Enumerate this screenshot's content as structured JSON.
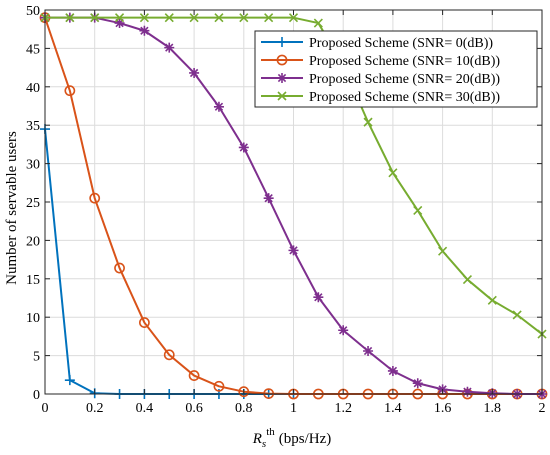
{
  "chart_data": {
    "type": "line",
    "xlabel_main": "R",
    "xlabel_sub": "s",
    "xlabel_sup": "th",
    "xlabel_unit": "(bps/Hz)",
    "ylabel": "Number of servable users",
    "xlim": [
      0,
      2
    ],
    "ylim": [
      0,
      50
    ],
    "xticks": [
      0,
      0.2,
      0.4,
      0.6,
      0.8,
      1,
      1.2,
      1.4,
      1.6,
      1.8,
      2
    ],
    "xtick_labels": [
      "0",
      "0.2",
      "0.4",
      "0.6",
      "0.8",
      "1",
      "1.2",
      "1.4",
      "1.6",
      "1.8",
      "2"
    ],
    "yticks": [
      0,
      5,
      10,
      15,
      20,
      25,
      30,
      35,
      40,
      45,
      50
    ],
    "ytick_labels": [
      "0",
      "5",
      "10",
      "15",
      "20",
      "25",
      "30",
      "35",
      "40",
      "45",
      "50"
    ],
    "grid": true,
    "legend_position": "top-right",
    "x": [
      0,
      0.1,
      0.2,
      0.3,
      0.4,
      0.5,
      0.6,
      0.7,
      0.8,
      0.9,
      1.0,
      1.1,
      1.2,
      1.3,
      1.4,
      1.5,
      1.6,
      1.7,
      1.8,
      1.9,
      2.0
    ],
    "series": [
      {
        "name": "Proposed Scheme (SNR= 0(dB))",
        "color": "#0072BD",
        "marker": "plus",
        "values": [
          34.5,
          1.8,
          0.1,
          0,
          0,
          0,
          0,
          0,
          0,
          0,
          0,
          null,
          null,
          null,
          null,
          null,
          null,
          null,
          null,
          null,
          null
        ]
      },
      {
        "name": "Proposed Scheme (SNR= 10(dB))",
        "color": "#D95319",
        "marker": "circle",
        "values": [
          49,
          39.5,
          25.5,
          16.4,
          9.3,
          5.1,
          2.4,
          1.0,
          0.3,
          0.05,
          0,
          0,
          0,
          0,
          0,
          0,
          0,
          0,
          0,
          0,
          0
        ]
      },
      {
        "name": "Proposed Scheme (SNR= 20(dB))",
        "color": "#7E2F8E",
        "marker": "star",
        "values": [
          49,
          49,
          49,
          48.3,
          47.3,
          45.1,
          41.8,
          37.4,
          32.1,
          25.5,
          18.7,
          12.6,
          8.3,
          5.6,
          3.0,
          1.4,
          0.6,
          0.3,
          0.1,
          0,
          0
        ]
      },
      {
        "name": "Proposed Scheme (SNR= 30(dB))",
        "color": "#77AC30",
        "marker": "x",
        "values": [
          49,
          49,
          49,
          49,
          49,
          49,
          49,
          49,
          49,
          49,
          49,
          48.3,
          42.8,
          35.4,
          28.8,
          23.9,
          18.6,
          14.9,
          12.2,
          10.3,
          7.8
        ]
      }
    ]
  }
}
